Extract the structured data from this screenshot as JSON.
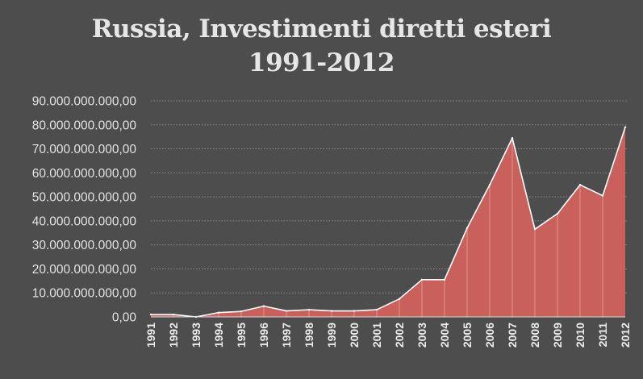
{
  "chart_data": {
    "type": "area",
    "title_line_1": "Russia, Investimenti diretti esteri",
    "title_line_2": "1991-2012",
    "xlabel": "",
    "ylabel": "",
    "ylim": [
      0,
      90000000000
    ],
    "y_ticks": [
      0,
      10000000000,
      20000000000,
      30000000000,
      40000000000,
      50000000000,
      60000000000,
      70000000000,
      80000000000,
      90000000000
    ],
    "y_tick_labels": [
      "0,00",
      "10.000.000.000,00",
      "20.000.000.000,00",
      "30.000.000.000,00",
      "40.000.000.000,00",
      "50.000.000.000,00",
      "60.000.000.000,00",
      "70.000.000.000,00",
      "80.000.000.000,00",
      "90.000.000.000,00"
    ],
    "categories": [
      "1991",
      "1992",
      "1993",
      "1994",
      "1995",
      "1996",
      "1997",
      "1998",
      "1999",
      "2000",
      "2001",
      "2002",
      "2003",
      "2004",
      "2005",
      "2006",
      "2007",
      "2008",
      "2009",
      "2010",
      "2011",
      "2012"
    ],
    "values": [
      1000000000,
      1000000000,
      0,
      1800000000,
      2300000000,
      4500000000,
      2500000000,
      3000000000,
      2500000000,
      2500000000,
      3000000000,
      7500000000,
      15500000000,
      15500000000,
      37000000000,
      55000000000,
      74500000000,
      36500000000,
      43000000000,
      55000000000,
      50500000000,
      79000000000
    ],
    "grid": true,
    "legend": "none",
    "colors": {
      "background": "#4d4d4d",
      "area_fill": "#c9605b",
      "area_line": "#ffffff",
      "gridline": "#8a8a8a",
      "text": "#e6e6e6"
    }
  }
}
